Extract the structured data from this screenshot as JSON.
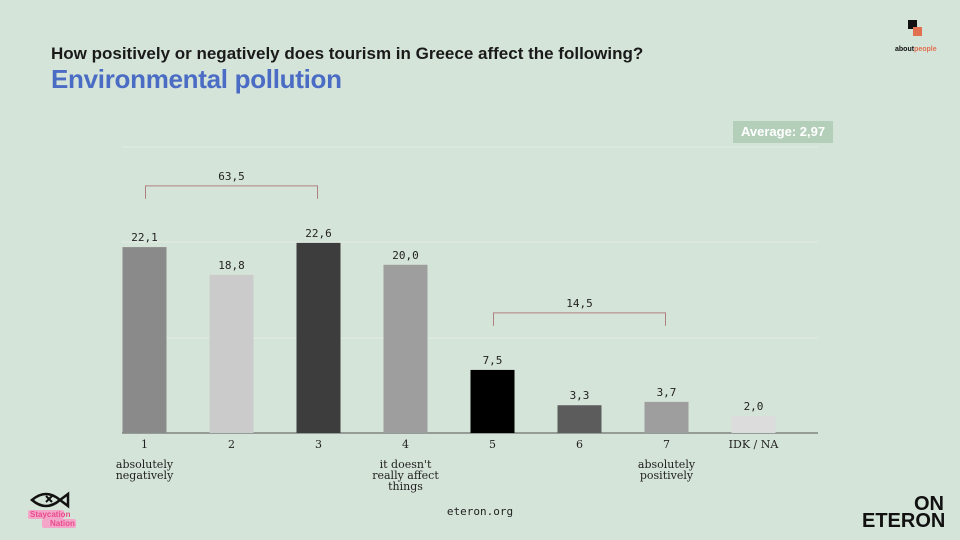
{
  "header": {
    "question": "How positively or negatively does tourism in Greece affect the following?",
    "subtitle": "Environmental pollution"
  },
  "average_badge": "Average: 2,97",
  "footer": {
    "url": "eteron.org",
    "brand_top": "ON",
    "brand_bottom": "ETERON",
    "partner_logo": "Staycation Nation",
    "about_logo_a": "about",
    "about_logo_b": "people"
  },
  "chart_data": {
    "type": "bar",
    "categories": [
      "1",
      "2",
      "3",
      "4",
      "5",
      "6",
      "7",
      "IDK / NA"
    ],
    "values": [
      22.1,
      18.8,
      22.6,
      20.0,
      7.5,
      3.3,
      3.7,
      2.0
    ],
    "value_labels": [
      "22,1",
      "18,8",
      "22,6",
      "20,0",
      "7,5",
      "3,3",
      "3,7",
      "2,0"
    ],
    "bar_colors": [
      "#8a8a8a",
      "#cbcbcb",
      "#3d3d3d",
      "#9e9e9e",
      "#000000",
      "#5c5c5c",
      "#9e9e9e",
      "#dcdcdc"
    ],
    "anchor_labels": [
      {
        "category": "1",
        "lines": [
          "absolutely",
          "negatively"
        ]
      },
      {
        "category": "4",
        "lines": [
          "it doesn't",
          "really affect",
          "things"
        ]
      },
      {
        "category": "7",
        "lines": [
          "absolutely",
          "positively"
        ]
      }
    ],
    "brackets": [
      {
        "from": "1",
        "to": "3",
        "label": "63,5",
        "value": 63.5
      },
      {
        "from": "5",
        "to": "7",
        "label": "14,5",
        "value": 14.5
      }
    ],
    "ylim": [
      0,
      34
    ],
    "grid": true,
    "colors": {
      "bracket": "#b08080",
      "grid": "#e3ece4"
    }
  }
}
